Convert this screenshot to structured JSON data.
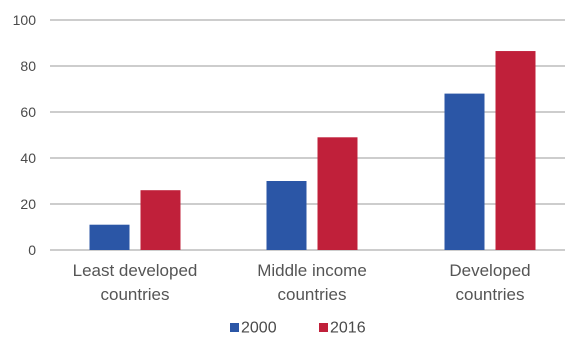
{
  "chart_data": {
    "type": "bar",
    "categories": [
      [
        "Least developed",
        "countries"
      ],
      [
        "Middle income",
        "countries"
      ],
      [
        "Developed",
        "countries"
      ]
    ],
    "series": [
      {
        "name": "2000",
        "color": "#2b56a6",
        "values": [
          11,
          30,
          68
        ]
      },
      {
        "name": "2016",
        "color": "#c0203a",
        "values": [
          26,
          49,
          86.5
        ]
      }
    ],
    "yticks": [
      "0",
      "20",
      "40",
      "60",
      "80",
      "100"
    ],
    "ylim": [
      0,
      100
    ],
    "grid": true,
    "legend_position": "bottom-center"
  }
}
